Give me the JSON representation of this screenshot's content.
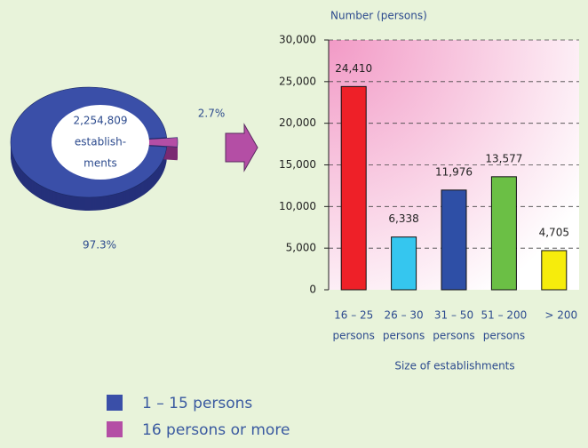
{
  "chart_data": [
    {
      "type": "pie",
      "center_label": [
        "2,254,809",
        "establish-",
        "ments"
      ],
      "categories": [
        "1 – 15 persons",
        "16 persons or more"
      ],
      "values": [
        97.3,
        2.7
      ],
      "value_labels": [
        "97.3%",
        "2.7%"
      ],
      "colors": [
        "#3a4fa8",
        "#b44ea5"
      ],
      "side_colors": [
        "#25307a",
        "#7a2a72"
      ],
      "explode": [
        false,
        true
      ],
      "legend": "bottom"
    },
    {
      "type": "bar",
      "ylabel": "Number (persons)",
      "xlabel": "Size of establishments",
      "categories": [
        [
          "16 – 25",
          "persons"
        ],
        [
          "26 – 30",
          "persons"
        ],
        [
          "31 – 50",
          "persons"
        ],
        [
          "51 – 200",
          "persons"
        ],
        [
          "> 200"
        ]
      ],
      "values": [
        24410,
        6338,
        11976,
        13577,
        4705
      ],
      "value_labels": [
        "24,410",
        "6,338",
        "11,976",
        "13,577",
        "4,705"
      ],
      "colors": [
        "#ee2028",
        "#35c6ef",
        "#2e4fa6",
        "#6bbf45",
        "#f6ec0c"
      ],
      "ylim": [
        0,
        30000
      ],
      "yticks": [
        0,
        {
          "value": 5000,
          "label": "5,000"
        },
        {
          "value": 10000,
          "label": "10,000"
        },
        {
          "value": 15000,
          "label": "15,000"
        },
        {
          "value": 20000,
          "label": "20,000"
        },
        {
          "value": 25000,
          "label": "25,000"
        },
        {
          "value": 30000,
          "label": "30,000"
        }
      ],
      "grid": true
    }
  ]
}
